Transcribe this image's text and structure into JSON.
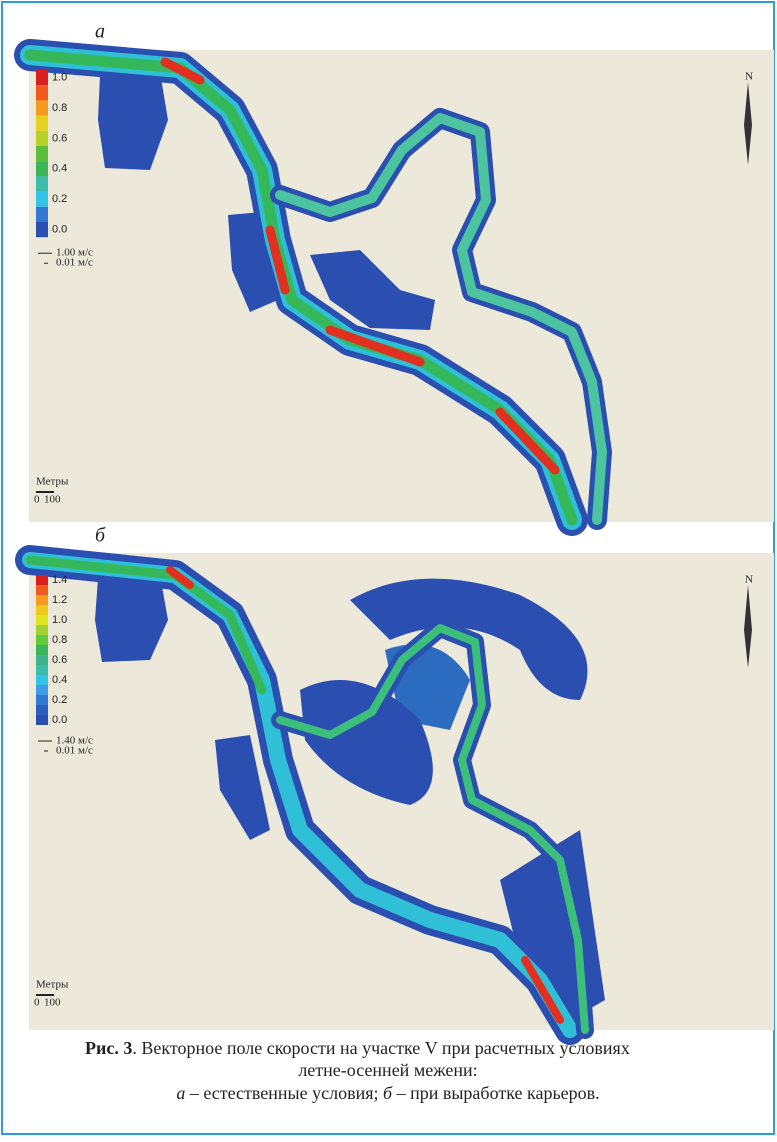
{
  "panels": [
    {
      "label": "а",
      "legend": [
        "1.0",
        "0.8",
        "0.6",
        "0.4",
        "0.2",
        "0.0"
      ],
      "vector_scale": [
        "1.00 м/с",
        "0.01 м/с"
      ],
      "scale_bar": {
        "title": "Метры",
        "start": "0",
        "end": "100"
      },
      "compass": "N"
    },
    {
      "label": "б",
      "legend": [
        "1.4",
        "1.2",
        "1.0",
        "0.8",
        "0.6",
        "0.4",
        "0.2",
        "0.0"
      ],
      "vector_scale": [
        "1.40 м/с",
        "0.01 м/с"
      ],
      "scale_bar": {
        "title": "Метры",
        "start": "0",
        "end": "100"
      },
      "compass": "N"
    }
  ],
  "caption": {
    "label": "Рис. 3",
    "text": ". Векторное поле скорости на участке V при расчетных условиях",
    "text2": "летне-осенней межени:",
    "items": [
      {
        "letter": "а",
        "text": " – естественные условия; "
      },
      {
        "letter": "б",
        "text": " – при выработке карьеров."
      }
    ]
  }
}
